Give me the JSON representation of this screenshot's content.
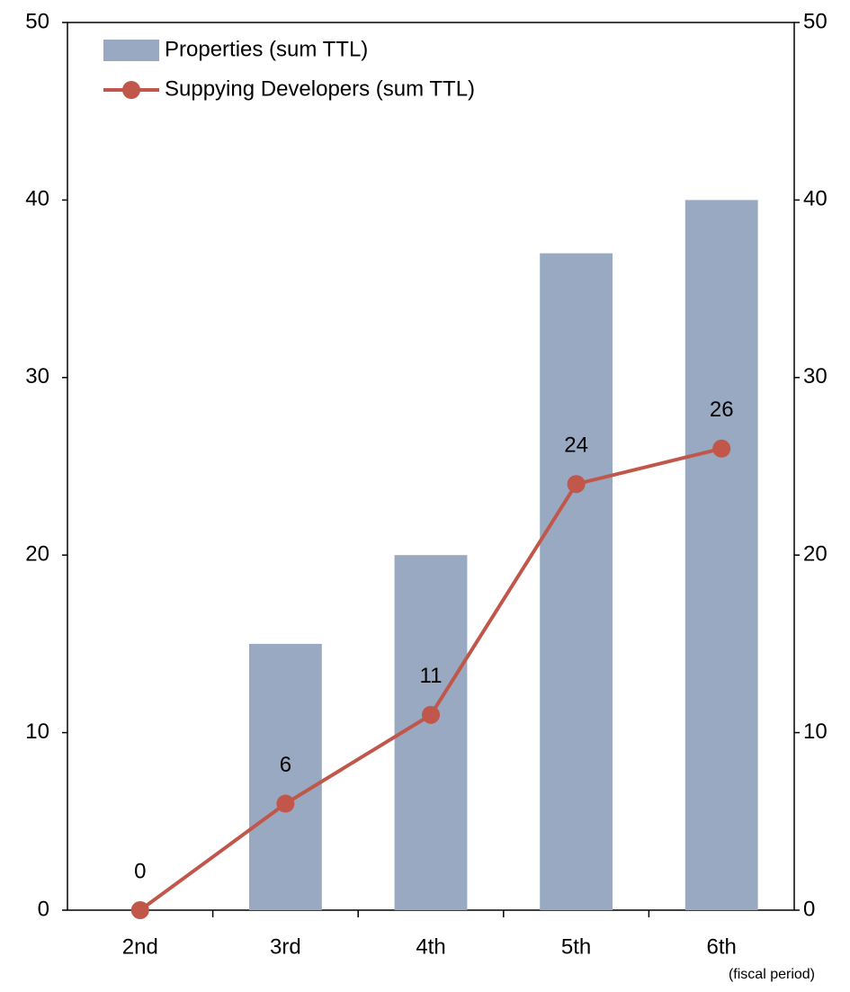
{
  "chart_data": {
    "type": "combo",
    "categories": [
      "2nd",
      "3rd",
      "4th",
      "5th",
      "6th"
    ],
    "series": [
      {
        "name": "Properties (sum TTL)",
        "type": "bar",
        "color": "#98a9c1",
        "values": [
          0,
          15,
          20,
          37,
          40
        ]
      },
      {
        "name": "Suppying Developers (sum TTL)",
        "type": "line",
        "axis": "y2",
        "color": "#c0574a",
        "values": [
          0,
          6,
          11,
          24,
          26
        ],
        "data_labels": true
      }
    ],
    "ylim": [
      0,
      50
    ],
    "yticks": [
      0,
      10,
      20,
      30,
      40,
      50
    ],
    "y2lim": [
      0,
      50
    ],
    "y2ticks": [
      0,
      10,
      20,
      30,
      40,
      50
    ],
    "annotation": "(fiscal period)",
    "grid": false,
    "legend": "top-left"
  }
}
